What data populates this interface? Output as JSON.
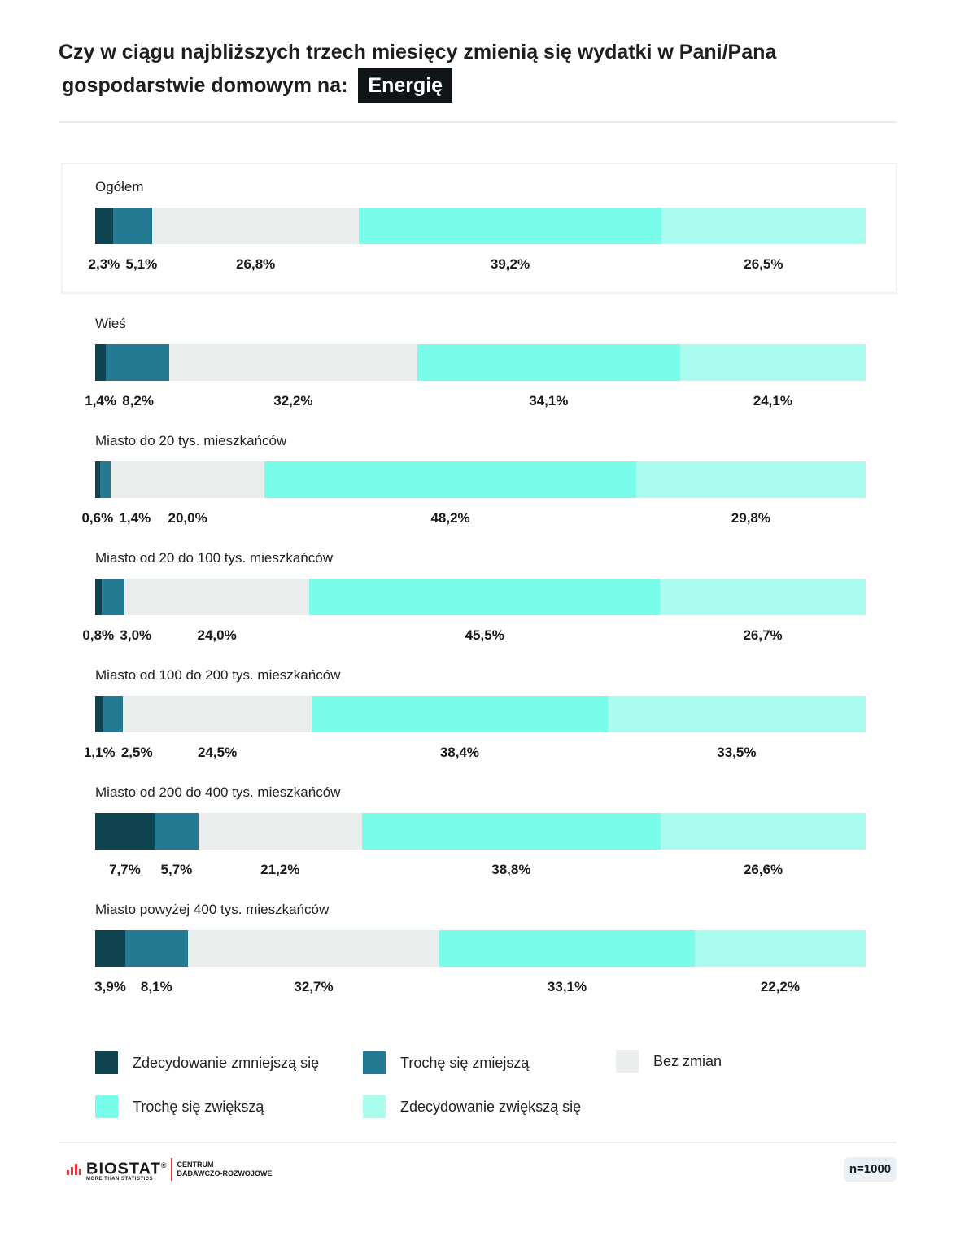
{
  "title": {
    "line1": "Czy w ciągu najbliższych trzech miesięcy zmienią się wydatki w Pani/Pana",
    "line2": "gospodarstwie domowym na:",
    "tag": "Energię"
  },
  "colors": {
    "strongly_decrease": "#0f4350",
    "slightly_decrease": "#237a92",
    "no_change": "#e9edec",
    "slightly_increase": "#79fce9",
    "strongly_increase": "#aafcef"
  },
  "chart_data": {
    "type": "bar",
    "orientation": "horizontal-stacked-100",
    "series_names": [
      "Zdecydowanie zmniejszą się",
      "Trochę się zmiejszą",
      "Bez zmian",
      "Trochę się zwiększą",
      "Zdecydowanie zwiększą się"
    ],
    "categories": [
      {
        "label": "Ogółem",
        "values": [
          2.3,
          5.1,
          26.8,
          39.2,
          26.5
        ],
        "value_labels": [
          "2,3%",
          "5,1%",
          "26,8%",
          "39,2%",
          "26,5%"
        ]
      },
      {
        "label": "Wieś",
        "values": [
          1.4,
          8.2,
          32.2,
          34.1,
          24.1
        ],
        "value_labels": [
          "1,4%",
          "8,2%",
          "32,2%",
          "34,1%",
          "24,1%"
        ]
      },
      {
        "label": "Miasto do 20 tys. mieszkańców",
        "values": [
          0.6,
          1.4,
          20.0,
          48.2,
          29.8
        ],
        "value_labels": [
          "0,6%",
          "1,4%",
          "20,0%",
          "48,2%",
          "29,8%"
        ]
      },
      {
        "label": "Miasto od 20 do 100 tys. mieszkańców",
        "values": [
          0.8,
          3.0,
          24.0,
          45.5,
          26.7
        ],
        "value_labels": [
          "0,8%",
          "3,0%",
          "24,0%",
          "45,5%",
          "26,7%"
        ]
      },
      {
        "label": "Miasto od 100 do 200 tys. mieszkańców",
        "values": [
          1.1,
          2.5,
          24.5,
          38.4,
          33.5
        ],
        "value_labels": [
          "1,1%",
          "2,5%",
          "24,5%",
          "38,4%",
          "33,5%"
        ]
      },
      {
        "label": "Miasto od 200 do 400 tys. mieszkańców",
        "values": [
          7.7,
          5.7,
          21.2,
          38.8,
          26.6
        ],
        "value_labels": [
          "7,7%",
          "5,7%",
          "21,2%",
          "38,8%",
          "26,6%"
        ]
      },
      {
        "label": "Miasto powyżej 400 tys. mieszkańców",
        "values": [
          3.9,
          8.1,
          32.7,
          33.1,
          22.2
        ],
        "value_labels": [
          "3,9%",
          "8,1%",
          "32,7%",
          "33,1%",
          "22,2%"
        ]
      }
    ]
  },
  "legend": [
    {
      "label": "Zdecydowanie zmniejszą się",
      "color_key": "strongly_decrease"
    },
    {
      "label": "Trochę się zmiejszą",
      "color_key": "slightly_decrease"
    },
    {
      "label": "Bez zmian",
      "color_key": "no_change"
    },
    {
      "label": "Trochę się zwiększą",
      "color_key": "slightly_increase"
    },
    {
      "label": "Zdecydowanie zwiększą się",
      "color_key": "strongly_increase"
    }
  ],
  "footer": {
    "logo": "BIOSTAT",
    "logo_mark": "®",
    "logo_tagline": "MORE THAN STATISTICS",
    "centrum_line1": "CENTRUM",
    "centrum_line2": "BADAWCZO-ROZWOJOWE",
    "sample": "n=1000"
  }
}
